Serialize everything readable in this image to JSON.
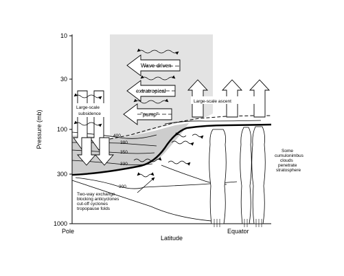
{
  "y_axis": {
    "label": "Pressure (mb)",
    "ticks": [
      "10",
      "30",
      "100",
      "300",
      "1000"
    ]
  },
  "x_axis": {
    "label": "Latitude",
    "left_label": "Pole",
    "right_label": "Equator"
  },
  "isentropes": [
    "400",
    "380",
    "350",
    "330",
    "300"
  ],
  "labels": {
    "wave_driven": "Wave-driven",
    "extratropical": "extratropical",
    "pump": "\"pump\"",
    "subsidence_1": "Large-scale",
    "subsidence_2": "subsidence",
    "ascent": "Large-scale ascent",
    "cumulonimbus": [
      "Some",
      "cumulonimbus",
      "clouds",
      "penetrate",
      "stratosphere"
    ],
    "exchange": [
      "Two-way exchange",
      "blocking anticyclones",
      "cut-off cyclones",
      "tropopause folds"
    ]
  },
  "colors": {
    "stratosphere_shade": "#e3e3e3",
    "middleworld_shade": "#cdcdcd",
    "line": "#000000"
  }
}
